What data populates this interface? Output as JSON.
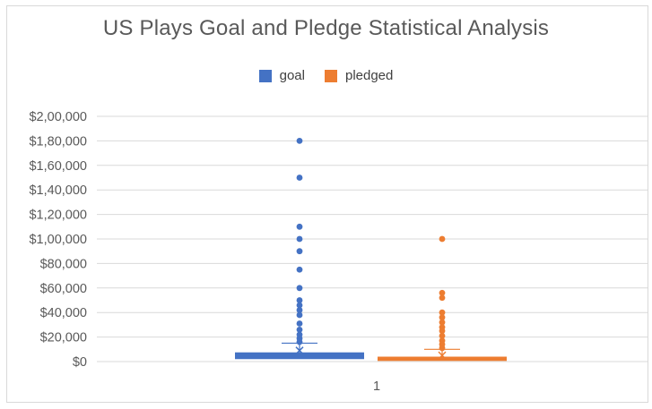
{
  "chart_data": {
    "type": "box",
    "title": "US Plays Goal and Pledge Statistical Analysis",
    "xlabel": "",
    "ylabel": "",
    "ylim": [
      0,
      200000
    ],
    "y_ticks": [
      "$0",
      "$20,000",
      "$40,000",
      "$60,000",
      "$80,000",
      "$1,00,000",
      "$1,20,000",
      "$1,40,000",
      "$1,60,000",
      "$1,80,000",
      "$2,00,000"
    ],
    "y_tick_values": [
      0,
      20000,
      40000,
      60000,
      80000,
      100000,
      120000,
      140000,
      160000,
      180000,
      200000
    ],
    "categories": [
      "1"
    ],
    "grid": true,
    "legend_position": "top",
    "series": [
      {
        "name": "goal",
        "color": "#4472c4",
        "q1": 2000,
        "q3": 7500,
        "mean": 9000,
        "whisker_high": 15000,
        "whisker_low": 0,
        "outliers": [
          180000,
          150000,
          110000,
          100000,
          90000,
          75000,
          60000,
          50000,
          46000,
          42000,
          38000,
          31000,
          26000,
          22000,
          19000,
          16000
        ]
      },
      {
        "name": "pledged",
        "color": "#ed7d31",
        "q1": 500,
        "q3": 4000,
        "mean": 5000,
        "whisker_high": 10000,
        "whisker_low": 0,
        "outliers": [
          100000,
          56000,
          52000,
          40000,
          36000,
          32000,
          28000,
          25000,
          21000,
          17000,
          14000,
          11000
        ]
      }
    ]
  }
}
